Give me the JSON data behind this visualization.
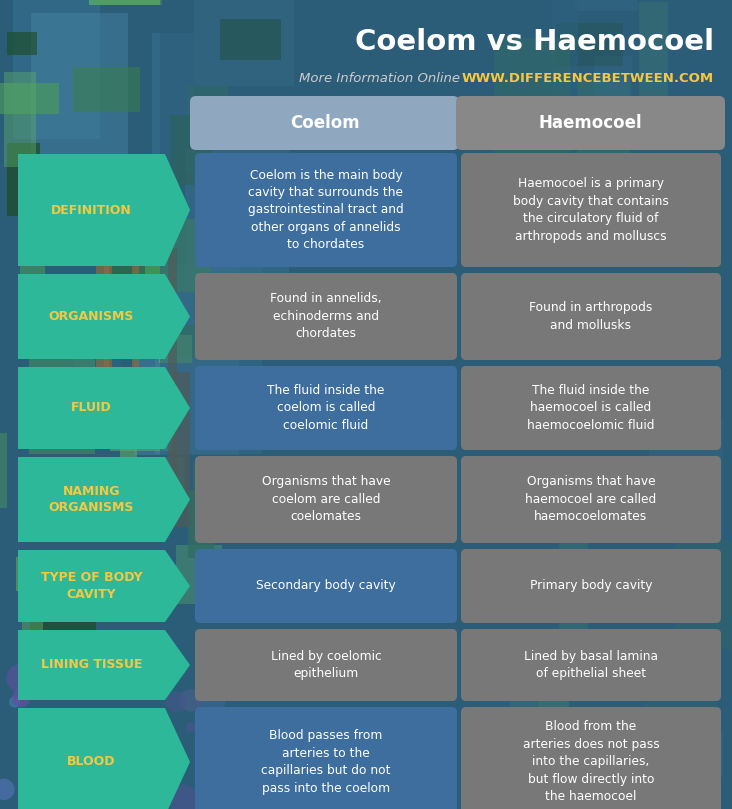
{
  "title": "Coelom vs Haemocoel",
  "subtitle": "More Information Online",
  "website": "WWW.DIFFERENCEBETWEEN.COM",
  "col_header_1": "Coelom",
  "col_header_2": "Haemocoel",
  "rows": [
    {
      "label": "DEFINITION",
      "coelom": "Coelom is the main body\ncavity that surrounds the\ngastrointestinal tract and\nother organs of annelids\nto chordates",
      "haemocoel": "Haemocoel is a primary\nbody cavity that contains\nthe circulatory fluid of\narthropods and molluscs"
    },
    {
      "label": "ORGANISMS",
      "coelom": "Found in annelids,\nechinoderms and\nchordates",
      "haemocoel": "Found in arthropods\nand mollusks"
    },
    {
      "label": "FLUID",
      "coelom": "The fluid inside the\ncoelom is called\ncoelomic fluid",
      "haemocoel": "The fluid inside the\nhaemocoel is called\nhaemocoelomic fluid"
    },
    {
      "label": "NAMING\nORGANISMS",
      "coelom": "Organisms that have\ncoelom are called\ncoelomates",
      "haemocoel": "Organisms that have\nhaemocoel are called\nhaemocoelomates"
    },
    {
      "label": "TYPE OF BODY\nCAVITY",
      "coelom": "Secondary body cavity",
      "haemocoel": "Primary body cavity"
    },
    {
      "label": "LINING TISSUE",
      "coelom": "Lined by coelomic\nepithelium",
      "haemocoel": "Lined by basal lamina\nof epithelial sheet"
    },
    {
      "label": "BLOOD",
      "coelom": "Blood passes from\narteries to the\ncapillaries but do not\npass into the coelom",
      "haemocoel": "Blood from the\narteries does not pass\ninto the capillaries,\nbut flow directly into\nthe haemocoel"
    }
  ],
  "bg_dark": "#2c5d78",
  "bg_mid": "#3a7a9c",
  "header_color_1": "#8fa8c0",
  "header_color_2": "#888888",
  "cell_blue": "#3d6e9e",
  "cell_gray": "#787878",
  "label_color": "#2db899",
  "label_text_color": "#f5c842",
  "title_color": "#ffffff",
  "subtitle_color": "#cccccc",
  "website_color": "#f5c842",
  "cell_text_color": "#ffffff",
  "header_text_color": "#ffffff",
  "nature_greens": [
    "#2d6b3a",
    "#3a8048",
    "#4a9a5a",
    "#1e4d28",
    "#5aaa6a"
  ],
  "nature_browns": [
    "#6b4a2a",
    "#7a5a35",
    "#8a6a40"
  ],
  "nature_blues": [
    "#3a7a9a",
    "#4a8aaa",
    "#2a6a8a"
  ],
  "flower_purple": "#7060a0",
  "flower_blue": "#5070b0"
}
